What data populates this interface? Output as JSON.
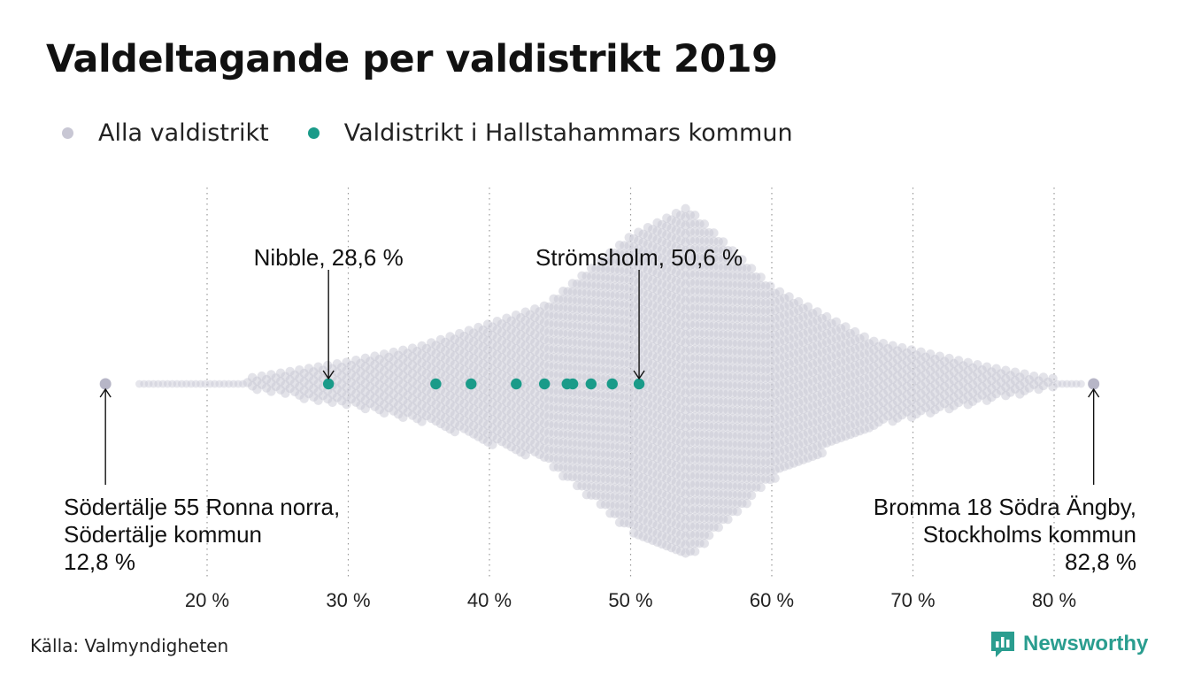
{
  "chart_data": {
    "type": "scatter",
    "subtype": "beeswarm",
    "title": "Valdeltagande per valdistrikt 2019",
    "xlabel": "",
    "ylabel": "",
    "xlim": [
      9.5,
      89.5
    ],
    "x_ticks": [
      20,
      30,
      40,
      50,
      60,
      70,
      80
    ],
    "x_tick_labels": [
      "20 %",
      "30 %",
      "40 %",
      "50 %",
      "60 %",
      "70 %",
      "80 %"
    ],
    "grid": "vertical-dotted",
    "legend": {
      "position": "top-left",
      "entries": [
        {
          "label": "Alla valdistrikt",
          "color": "#c8c7d4"
        },
        {
          "label": "Valdistrikt i Hallstahammars kommun",
          "color": "#1a9b89"
        }
      ]
    },
    "series": [
      {
        "name": "Valdistrikt i Hallstahammars kommun",
        "color": "#1a9b89",
        "x": [
          28.6,
          36.2,
          38.7,
          41.9,
          43.9,
          45.5,
          45.9,
          47.2,
          48.7,
          50.6
        ]
      },
      {
        "name": "Alla valdistrikt",
        "color": "#c8c7d4",
        "x_extremes": [
          12.8,
          82.8
        ],
        "distribution": "beeswarm of all districts, range 12.8–82.8 %, densest around 53–54 %"
      }
    ],
    "annotations": [
      {
        "lines": [
          "Nibble, 28,6 %"
        ],
        "x": 28.6,
        "anchor": "above"
      },
      {
        "lines": [
          "Strömsholm, 50,6 %"
        ],
        "x": 50.6,
        "anchor": "above"
      },
      {
        "lines": [
          "Södertälje 55 Ronna norra,",
          "Södertälje kommun",
          "12,8 %"
        ],
        "x": 12.8,
        "anchor": "below-left"
      },
      {
        "lines": [
          "Bromma 18 Södra Ängby,",
          "Stockholms kommun",
          "82,8 %"
        ],
        "x": 82.8,
        "anchor": "below-right"
      }
    ]
  },
  "source": "Källa: Valmyndigheten",
  "brand": "Newsworthy"
}
